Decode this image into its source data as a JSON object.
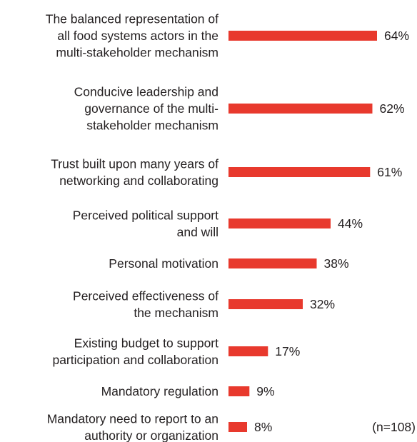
{
  "colors": {
    "bar": "#e8392d",
    "text": "#231f20"
  },
  "chart_data": {
    "type": "bar",
    "orientation": "horizontal",
    "value_suffix": "%",
    "xlim": [
      0,
      100
    ],
    "grid": false,
    "categories": [
      "The balanced representation of all food systems actors in the multi-stakeholder mechanism",
      "Conducive leadership and governance of the multi-stakeholder mechanism",
      "Trust built upon many years of networking and collaborating",
      "Perceived political support and will",
      "Personal motivation",
      "Perceived effectiveness of the mechanism",
      "Existing budget to support participation and collaboration",
      "Mandatory regulation",
      "Mandatory need to report to an authority or organization"
    ],
    "category_lines": [
      [
        "The balanced representation of",
        "all food systems actors in the",
        "multi-stakeholder mechanism"
      ],
      [
        "Conducive leadership and",
        "governance of the multi-",
        "stakeholder mechanism"
      ],
      [
        "Trust built upon many years of",
        "networking and collaborating"
      ],
      [
        "Perceived political support",
        "and will"
      ],
      [
        "Personal motivation"
      ],
      [
        "Perceived effectiveness of",
        "the mechanism"
      ],
      [
        "Existing budget to support",
        "participation and collaboration"
      ],
      [
        "Mandatory regulation"
      ],
      [
        "Mandatory need to report to an",
        "authority or organization"
      ]
    ],
    "values": [
      64,
      62,
      61,
      44,
      38,
      32,
      17,
      9,
      8
    ],
    "labels": [
      "64%",
      "62%",
      "61%",
      "44%",
      "38%",
      "32%",
      "17%",
      "9%",
      "8%"
    ],
    "annotation": "(n=108)"
  }
}
